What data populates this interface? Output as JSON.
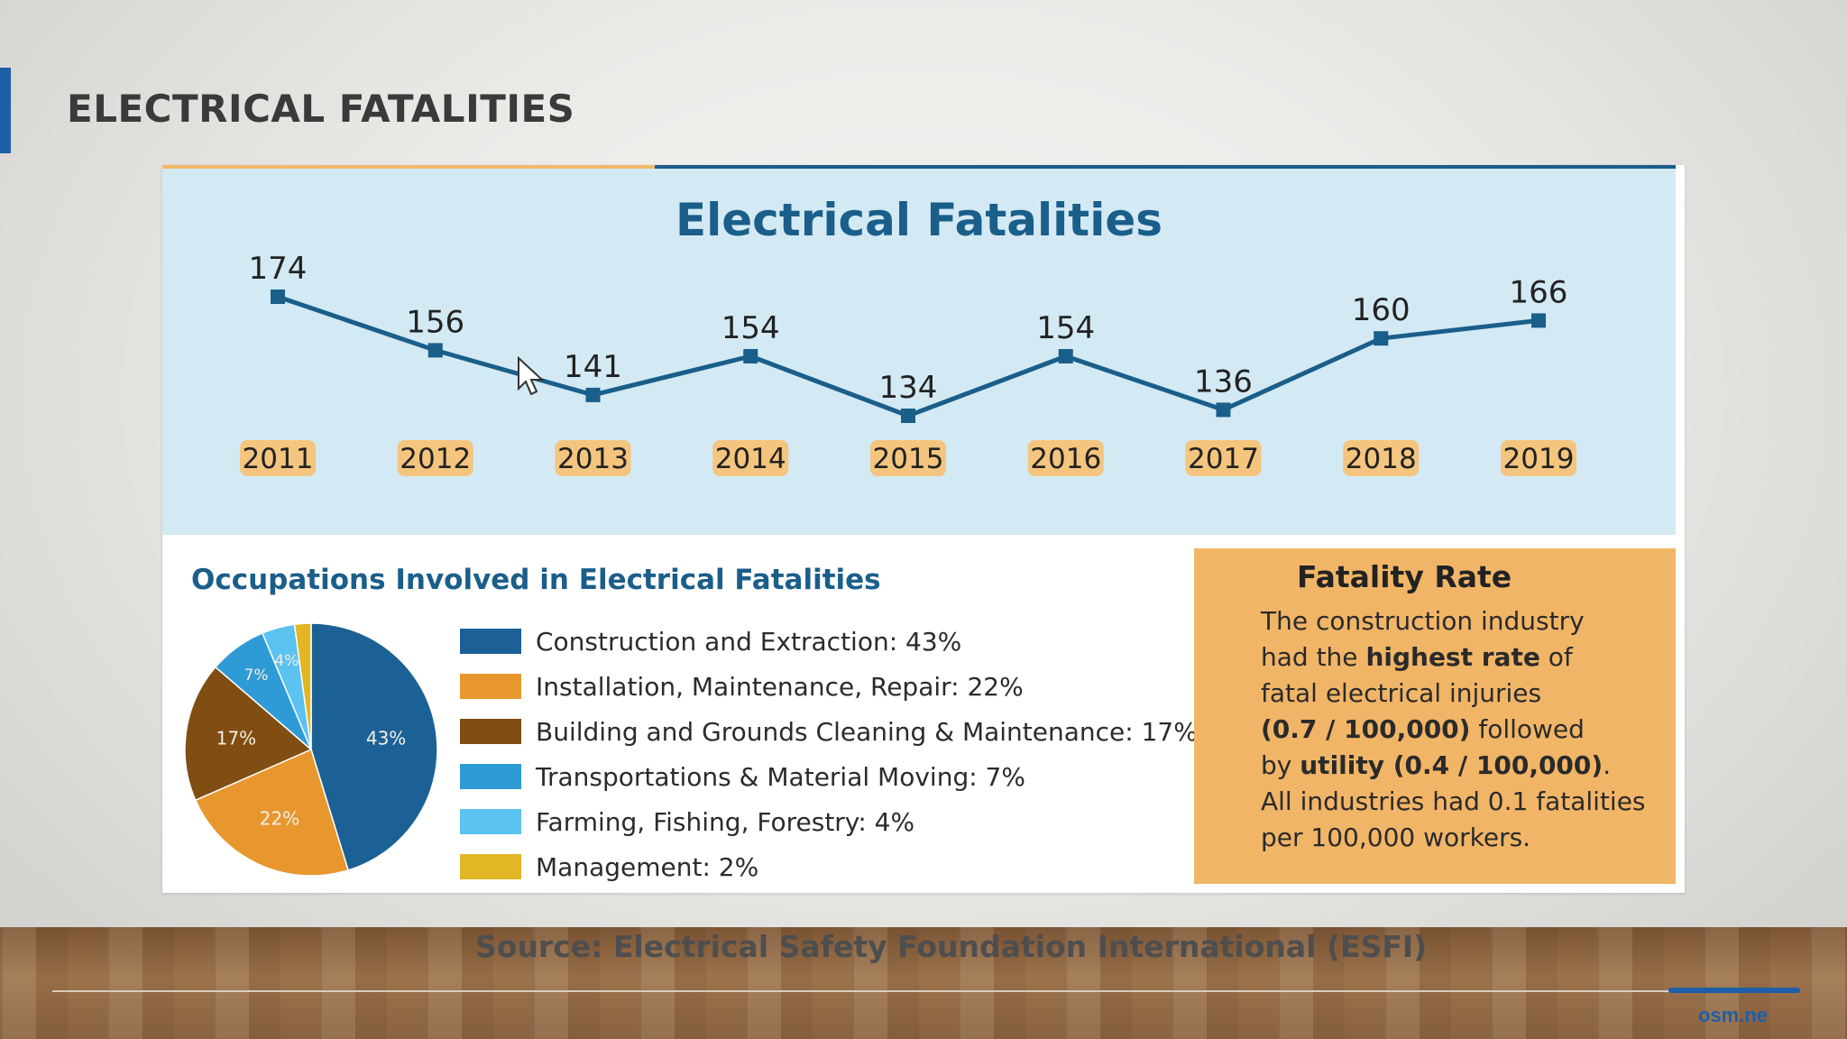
{
  "slide": {
    "title": "ELECTRICAL FATALITIES",
    "source": "Source: Electrical Safety Foundation International (ESFI)",
    "corner_mark": "osm.ne",
    "accent_color": "#1e5fa8"
  },
  "infographic": {
    "title": "Electrical Fatalities",
    "pie_heading": "Occupations Involved in Electrical Fatalities",
    "rate_box": {
      "heading": "Fatality Rate",
      "text_1": "The construction industry",
      "text_2": "had the ",
      "text_3": "highest rate",
      "text_4": " of",
      "text_5": "fatal electrical injuries",
      "text_6": "(0.7 / 100,000)",
      "text_7": " followed",
      "text_8": "by ",
      "text_9": "utility (0.4 / 100,000)",
      "text_10": ".",
      "text_11": "All industries had 0.1 fatalities",
      "text_12": "per 100,000 workers."
    }
  },
  "chart_data": [
    {
      "type": "line",
      "title": "Electrical Fatalities",
      "x": [
        "2011",
        "2012",
        "2013",
        "2014",
        "2015",
        "2016",
        "2017",
        "2018",
        "2019"
      ],
      "series": [
        {
          "values": [
            174,
            156,
            141,
            154,
            134,
            154,
            136,
            160,
            166
          ]
        }
      ],
      "color": "#1a5e8a",
      "label_color": "#f4c57e"
    },
    {
      "type": "pie",
      "title": "Occupations Involved in Electrical Fatalities",
      "slices": [
        {
          "label": "Construction and Extraction: 43%",
          "value": 43,
          "slice_label": "43%",
          "color": "#1b6195"
        },
        {
          "label": "Installation, Maintenance, Repair: 22%",
          "value": 22,
          "slice_label": "22%",
          "color": "#e8972f"
        },
        {
          "label": "Building and Grounds Cleaning & Maintenance: 17%",
          "value": 17,
          "slice_label": "17%",
          "color": "#804d12"
        },
        {
          "label": "Transportations & Material Moving: 7%",
          "value": 7,
          "slice_label": "7%",
          "color": "#2e9bd6"
        },
        {
          "label": "Farming, Fishing, Forestry: 4%",
          "value": 4,
          "slice_label": "4%",
          "color": "#5cc2ef"
        },
        {
          "label": "Management: 2%",
          "value": 2,
          "slice_label": "",
          "color": "#e3b626"
        }
      ]
    }
  ]
}
